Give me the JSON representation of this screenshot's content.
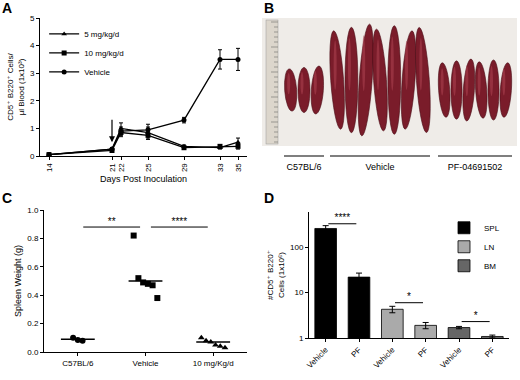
{
  "chart_data": [
    {
      "panel": "A",
      "type": "line",
      "x_label": "Days Post Inoculation",
      "y_label": "CD5⁺ B220⁺ Cells/ µl Blood (1x10³)",
      "x": [
        14,
        21,
        22,
        25,
        29,
        33,
        35
      ],
      "xlim": [
        13,
        36
      ],
      "xticks": [
        14,
        21,
        22,
        25,
        29,
        33,
        35
      ],
      "ylim": [
        0,
        5
      ],
      "yticks": [
        0,
        1,
        2,
        3,
        4,
        5
      ],
      "legend": "top left",
      "arrow": {
        "x": 21,
        "y": 0.5
      },
      "series": [
        {
          "name": "5 mg/kg/d",
          "color": "#000000",
          "marker": "triangle",
          "values": [
            0.05,
            0.25,
            1.0,
            0.85,
            0.35,
            0.3,
            0.5
          ],
          "errors": [
            0.02,
            0.05,
            0.2,
            0.2,
            0.05,
            0.05,
            0.15
          ]
        },
        {
          "name": "10 mg/kg/d",
          "color": "#000000",
          "marker": "square",
          "values": [
            0.05,
            0.2,
            0.85,
            0.75,
            0.3,
            0.35,
            0.35
          ],
          "errors": [
            0.02,
            0.05,
            0.15,
            0.15,
            0.05,
            0.05,
            0.1
          ]
        },
        {
          "name": "Vehicle",
          "color": "#000000",
          "marker": "circle",
          "values": [
            0.05,
            0.25,
            0.9,
            0.95,
            1.3,
            3.5,
            3.5
          ],
          "errors": [
            0.02,
            0.05,
            0.15,
            0.2,
            0.1,
            0.35,
            0.4
          ]
        }
      ]
    },
    {
      "panel": "C",
      "type": "scatter",
      "y_label": "Spleen Weight (g)",
      "ylim": [
        0,
        1
      ],
      "yticks": [
        {
          "value": 0,
          "label": "0.0"
        },
        0.2,
        0.4,
        0.6,
        0.8,
        {
          "value": 1,
          "label": "1.0"
        }
      ],
      "color": "#000000",
      "groups": [
        {
          "category": "C57BL/6",
          "marker": "circle",
          "values": [
            0.1,
            0.085,
            0.08
          ],
          "center": 0.09
        },
        {
          "category": "Vehicle",
          "marker": "square",
          "values": [
            0.82,
            0.52,
            0.49,
            0.48,
            0.47,
            0.38
          ],
          "center": 0.5
        },
        {
          "category": "10 mg/Kg/d",
          "marker": "triangle",
          "values": [
            0.1,
            0.08,
            0.07,
            0.05,
            0.04,
            0.03
          ],
          "center": 0.07
        }
      ],
      "significance": [
        {
          "from": 0,
          "to": 1,
          "y": 0.88,
          "text": "**"
        },
        {
          "from": 1,
          "to": 2,
          "y": 0.88,
          "text": "****"
        }
      ]
    },
    {
      "panel": "D",
      "type": "bar",
      "log": "y",
      "y_label": "#CD5⁺ B220⁺ Cells (1x10⁶)",
      "categories": [
        "Vehicle",
        "PF",
        "Vehicle",
        "PF",
        "Vehicle",
        "PF"
      ],
      "ylim": [
        1,
        600
      ],
      "yticks": [
        1,
        10,
        100
      ],
      "legend": "top right",
      "series": [
        {
          "name": "SPL",
          "color": "#000000",
          "values": [
            260,
            22,
            null,
            null,
            null,
            null
          ],
          "errors": [
            40,
            5,
            null,
            null,
            null,
            null
          ]
        },
        {
          "name": "LN",
          "color": "#aaaaaa",
          "values": [
            null,
            null,
            4.3,
            1.9,
            null,
            null
          ],
          "errors": [
            null,
            null,
            0.7,
            0.3,
            null,
            null
          ]
        },
        {
          "name": "BM",
          "color": "#666666",
          "values": [
            null,
            null,
            null,
            null,
            1.7,
            1.08
          ],
          "errors": [
            null,
            null,
            null,
            null,
            0.1,
            0.08
          ]
        }
      ],
      "significance": [
        {
          "from": 0,
          "to": 1,
          "y": 330,
          "text": "****"
        },
        {
          "from": 2,
          "to": 3,
          "y": 6,
          "text": "*"
        },
        {
          "from": 4,
          "to": 5,
          "y": 2.3,
          "text": "*"
        }
      ]
    }
  ],
  "photo": {
    "panel": "B",
    "groups": [
      {
        "label": "C57BL/6",
        "count": 3
      },
      {
        "label": "Vehicle",
        "count": 7
      },
      {
        "label": "PF-04691502",
        "count": 6
      }
    ]
  }
}
